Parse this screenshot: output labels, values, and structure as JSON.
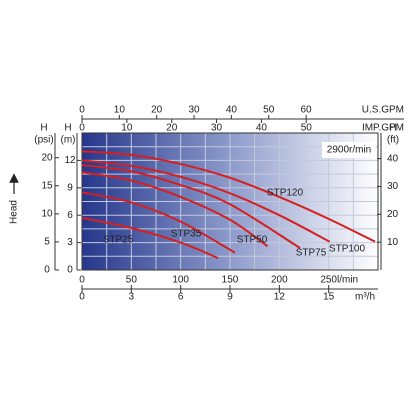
{
  "chart_data": {
    "type": "line",
    "annotation": "2900r/min",
    "head_label": "Head",
    "top_axes": [
      {
        "title": "U.S.GPM",
        "xlim": [
          0,
          79.26
        ],
        "xticks": [
          0,
          10,
          20,
          30,
          40,
          50,
          60
        ]
      },
      {
        "title": "IMP.GPM",
        "xlim": [
          0,
          65.99
        ],
        "xticks": [
          0,
          10,
          20,
          30,
          40,
          50
        ]
      }
    ],
    "bottom_axes": [
      {
        "title": "l/min",
        "xlim": [
          0,
          300
        ],
        "xticks": [
          0,
          50,
          100,
          150,
          200,
          250
        ]
      },
      {
        "title": "m³/h",
        "xlim": [
          0,
          18
        ],
        "xticks": [
          0,
          3,
          6,
          9,
          12,
          15
        ]
      }
    ],
    "left_axes": [
      {
        "title": "H",
        "unit": "(psi)",
        "ylim": [
          0,
          24.4
        ],
        "yticks": [
          0,
          5,
          10,
          15,
          20
        ]
      },
      {
        "title": "H",
        "unit": "(m)",
        "ylim": [
          0,
          15
        ],
        "yticks": [
          0,
          3,
          6,
          9,
          12
        ]
      }
    ],
    "right_axis": {
      "title": "H",
      "unit": "(ft)",
      "ylim": [
        0,
        49.2
      ],
      "yticks": [
        10,
        20,
        30,
        40
      ]
    },
    "grid_x": [
      25,
      50,
      75,
      100,
      125,
      150,
      175,
      200,
      225,
      250,
      275
    ],
    "grid_y": [
      1.5,
      3,
      4.5,
      6,
      7.5,
      9,
      10.5,
      12,
      13.5
    ],
    "series": [
      {
        "name": "STP25",
        "color": "#d42020",
        "x": [
          0,
          50,
          100,
          138
        ],
        "values": [
          5.7,
          4.6,
          3.0,
          1.3
        ]
      },
      {
        "name": "STP35",
        "color": "#d42020",
        "x": [
          0,
          50,
          100,
          155
        ],
        "values": [
          8.5,
          7.4,
          5.3,
          1.9
        ]
      },
      {
        "name": "STP50",
        "color": "#d42020",
        "x": [
          0,
          50,
          100,
          150,
          188
        ],
        "values": [
          10.7,
          9.8,
          8.0,
          5.5,
          2.6
        ]
      },
      {
        "name": "STP75",
        "color": "#d42020",
        "x": [
          0,
          50,
          100,
          150,
          221
        ],
        "values": [
          11.5,
          10.8,
          9.3,
          7.2,
          2.4
        ]
      },
      {
        "name": "STP100",
        "color": "#d42020",
        "x": [
          0,
          50,
          100,
          150,
          200,
          251
        ],
        "values": [
          12.0,
          11.4,
          10.2,
          8.4,
          6.0,
          3.1
        ]
      },
      {
        "name": "STP120",
        "color": "#d42020",
        "x": [
          0,
          50,
          100,
          150,
          200,
          250,
          297
        ],
        "values": [
          13.0,
          12.6,
          11.6,
          10.1,
          8.0,
          5.6,
          3.1
        ]
      }
    ]
  }
}
